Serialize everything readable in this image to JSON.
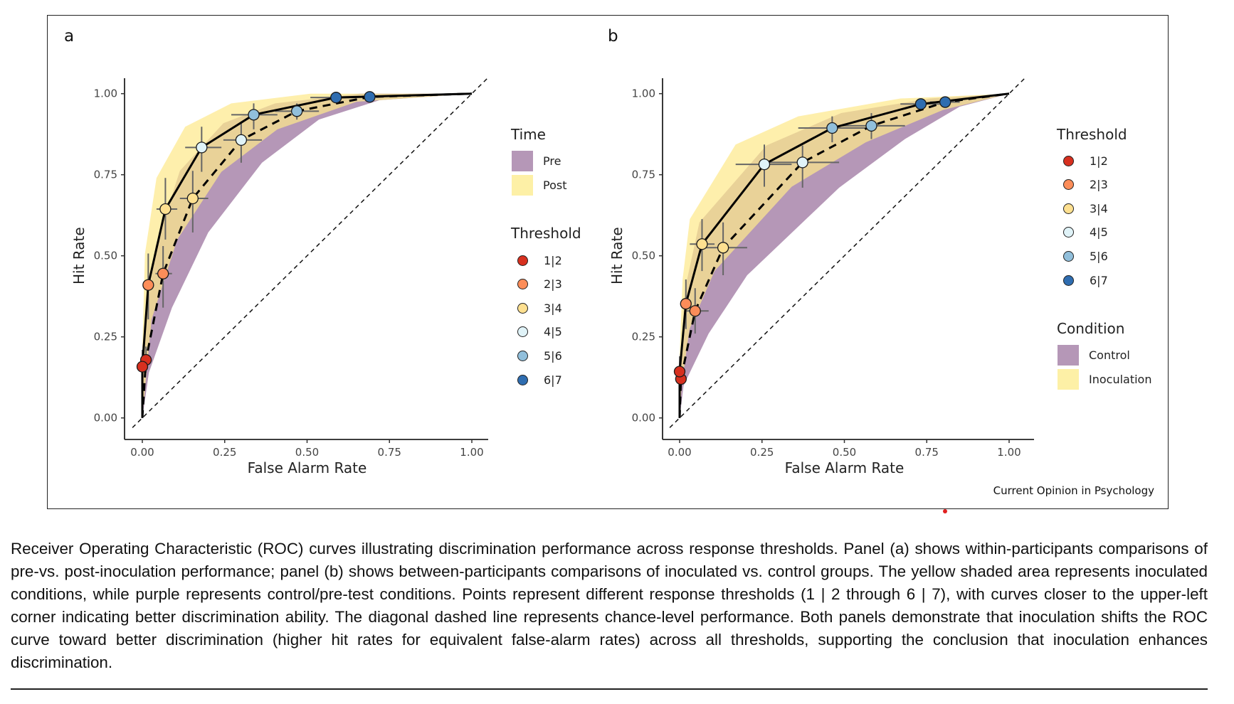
{
  "colors": {
    "pre_control_ribbon": "#b597b7",
    "post_inoculation_ribbon": "#fde98c",
    "thresholds": [
      "#d7301f",
      "#fc8d59",
      "#fee090",
      "#e0f3f8",
      "#91bfdb",
      "#2f6db0"
    ]
  },
  "chart_data": [
    {
      "panel": "a",
      "type": "line",
      "xlabel": "False Alarm Rate",
      "ylabel": "Hit Rate",
      "xlim": [
        0,
        1
      ],
      "ylim": [
        0,
        1
      ],
      "xticks": [
        "0.00",
        "0.25",
        "0.50",
        "0.75",
        "1.00"
      ],
      "yticks": [
        "0.00",
        "0.25",
        "0.50",
        "0.75",
        "1.00"
      ],
      "grid": false,
      "chance_line": true,
      "thresholds": [
        "1|2",
        "2|3",
        "3|4",
        "4|5",
        "5|6",
        "6|7"
      ],
      "series": [
        {
          "name": "Pre",
          "line": "dashed",
          "ribbon": "purple",
          "x": [
            0.011,
            0.063,
            0.153,
            0.3,
            0.469,
            0.69
          ],
          "y": [
            0.179,
            0.445,
            0.677,
            0.857,
            0.946,
            0.99
          ],
          "x_ci": [
            [
              0.0,
              0.02
            ],
            [
              0.04,
              0.09
            ],
            [
              0.114,
              0.2
            ],
            [
              0.246,
              0.363
            ],
            [
              0.403,
              0.536
            ],
            [
              0.66,
              0.72
            ]
          ],
          "y_ci": [
            [
              0.14,
              0.22
            ],
            [
              0.34,
              0.53
            ],
            [
              0.572,
              0.762
            ],
            [
              0.787,
              0.909
            ],
            [
              0.92,
              0.97
            ],
            [
              0.98,
              1.0
            ]
          ]
        },
        {
          "name": "Post",
          "line": "solid",
          "ribbon": "yellow",
          "x": [
            0.0,
            0.018,
            0.07,
            0.18,
            0.338,
            0.588
          ],
          "y": [
            0.158,
            0.41,
            0.644,
            0.834,
            0.935,
            0.988
          ],
          "x_ci": [
            [
              -0.005,
              0.01
            ],
            [
              0.008,
              0.028
            ],
            [
              0.043,
              0.106
            ],
            [
              0.13,
              0.24
            ],
            [
              0.27,
              0.41
            ],
            [
              0.51,
              0.65
            ]
          ],
          "y_ci": [
            [
              0.11,
              0.21
            ],
            [
              0.304,
              0.507
            ],
            [
              0.55,
              0.74
            ],
            [
              0.759,
              0.898
            ],
            [
              0.89,
              0.97
            ],
            [
              0.975,
              1.0
            ]
          ]
        }
      ],
      "legend": {
        "position": "right",
        "time_title": "Time",
        "time_items": [
          "Pre",
          "Post"
        ],
        "threshold_title": "Threshold"
      }
    },
    {
      "panel": "b",
      "type": "line",
      "xlabel": "False Alarm Rate",
      "ylabel": "Hit Rate",
      "xlim": [
        0,
        1
      ],
      "ylim": [
        0,
        1
      ],
      "xticks": [
        "0.00",
        "0.25",
        "0.50",
        "0.75",
        "1.00"
      ],
      "yticks": [
        "0.00",
        "0.25",
        "0.50",
        "0.75",
        "1.00"
      ],
      "grid": false,
      "chance_line": true,
      "thresholds": [
        "1|2",
        "2|3",
        "3|4",
        "4|5",
        "5|6",
        "6|7"
      ],
      "series": [
        {
          "name": "Control",
          "line": "dashed",
          "ribbon": "purple",
          "x": [
            0.004,
            0.047,
            0.132,
            0.373,
            0.582,
            0.806
          ],
          "y": [
            0.12,
            0.33,
            0.525,
            0.788,
            0.901,
            0.974
          ],
          "x_ci": [
            [
              -0.004,
              0.012
            ],
            [
              0.017,
              0.088
            ],
            [
              0.06,
              0.205
            ],
            [
              0.263,
              0.484
            ],
            [
              0.49,
              0.684
            ],
            [
              0.76,
              0.85
            ]
          ],
          "y_ci": [
            [
              0.1,
              0.14
            ],
            [
              0.26,
              0.4
            ],
            [
              0.44,
              0.603
            ],
            [
              0.71,
              0.84
            ],
            [
              0.86,
              0.94
            ],
            [
              0.96,
              0.985
            ]
          ]
        },
        {
          "name": "Inoculation",
          "line": "solid",
          "ribbon": "yellow",
          "x": [
            0.0,
            0.019,
            0.068,
            0.257,
            0.463,
            0.732
          ],
          "y": [
            0.143,
            0.352,
            0.536,
            0.782,
            0.894,
            0.968
          ],
          "x_ci": [
            [
              -0.004,
              0.006
            ],
            [
              0.009,
              0.03
            ],
            [
              0.031,
              0.106
            ],
            [
              0.17,
              0.34
            ],
            [
              0.36,
              0.565
            ],
            [
              0.67,
              0.8
            ]
          ],
          "y_ci": [
            [
              0.1,
              0.19
            ],
            [
              0.274,
              0.427
            ],
            [
              0.453,
              0.613
            ],
            [
              0.713,
              0.843
            ],
            [
              0.85,
              0.93
            ],
            [
              0.95,
              0.985
            ]
          ]
        }
      ],
      "legend": {
        "position": "right",
        "threshold_title": "Threshold",
        "condition_title": "Condition",
        "condition_items": [
          "Control",
          "Inoculation"
        ]
      }
    }
  ],
  "panel_labels": [
    "a",
    "b"
  ],
  "source": "Current Opinion in Psychology",
  "caption": "Receiver Operating Characteristic (ROC) curves illustrating discrimination performance across response thresholds. Panel (a) shows within-participants comparisons of pre-vs. post-inoculation performance; panel (b) shows between-participants comparisons of inoculated vs. control groups. The yellow shaded area represents inoculated conditions, while purple represents control/pre-test conditions. Points represent different response thresholds (1 | 2 through 6 | 7), with curves closer to the upper-left corner indicating better discrimination ability. The diagonal dashed line represents chance-level performance. Both panels demonstrate that inoculation shifts the ROC curve toward better discrimination (higher hit rates for equivalent false-alarm rates) across all thresholds, supporting the conclusion that inoculation enhances discrimination."
}
